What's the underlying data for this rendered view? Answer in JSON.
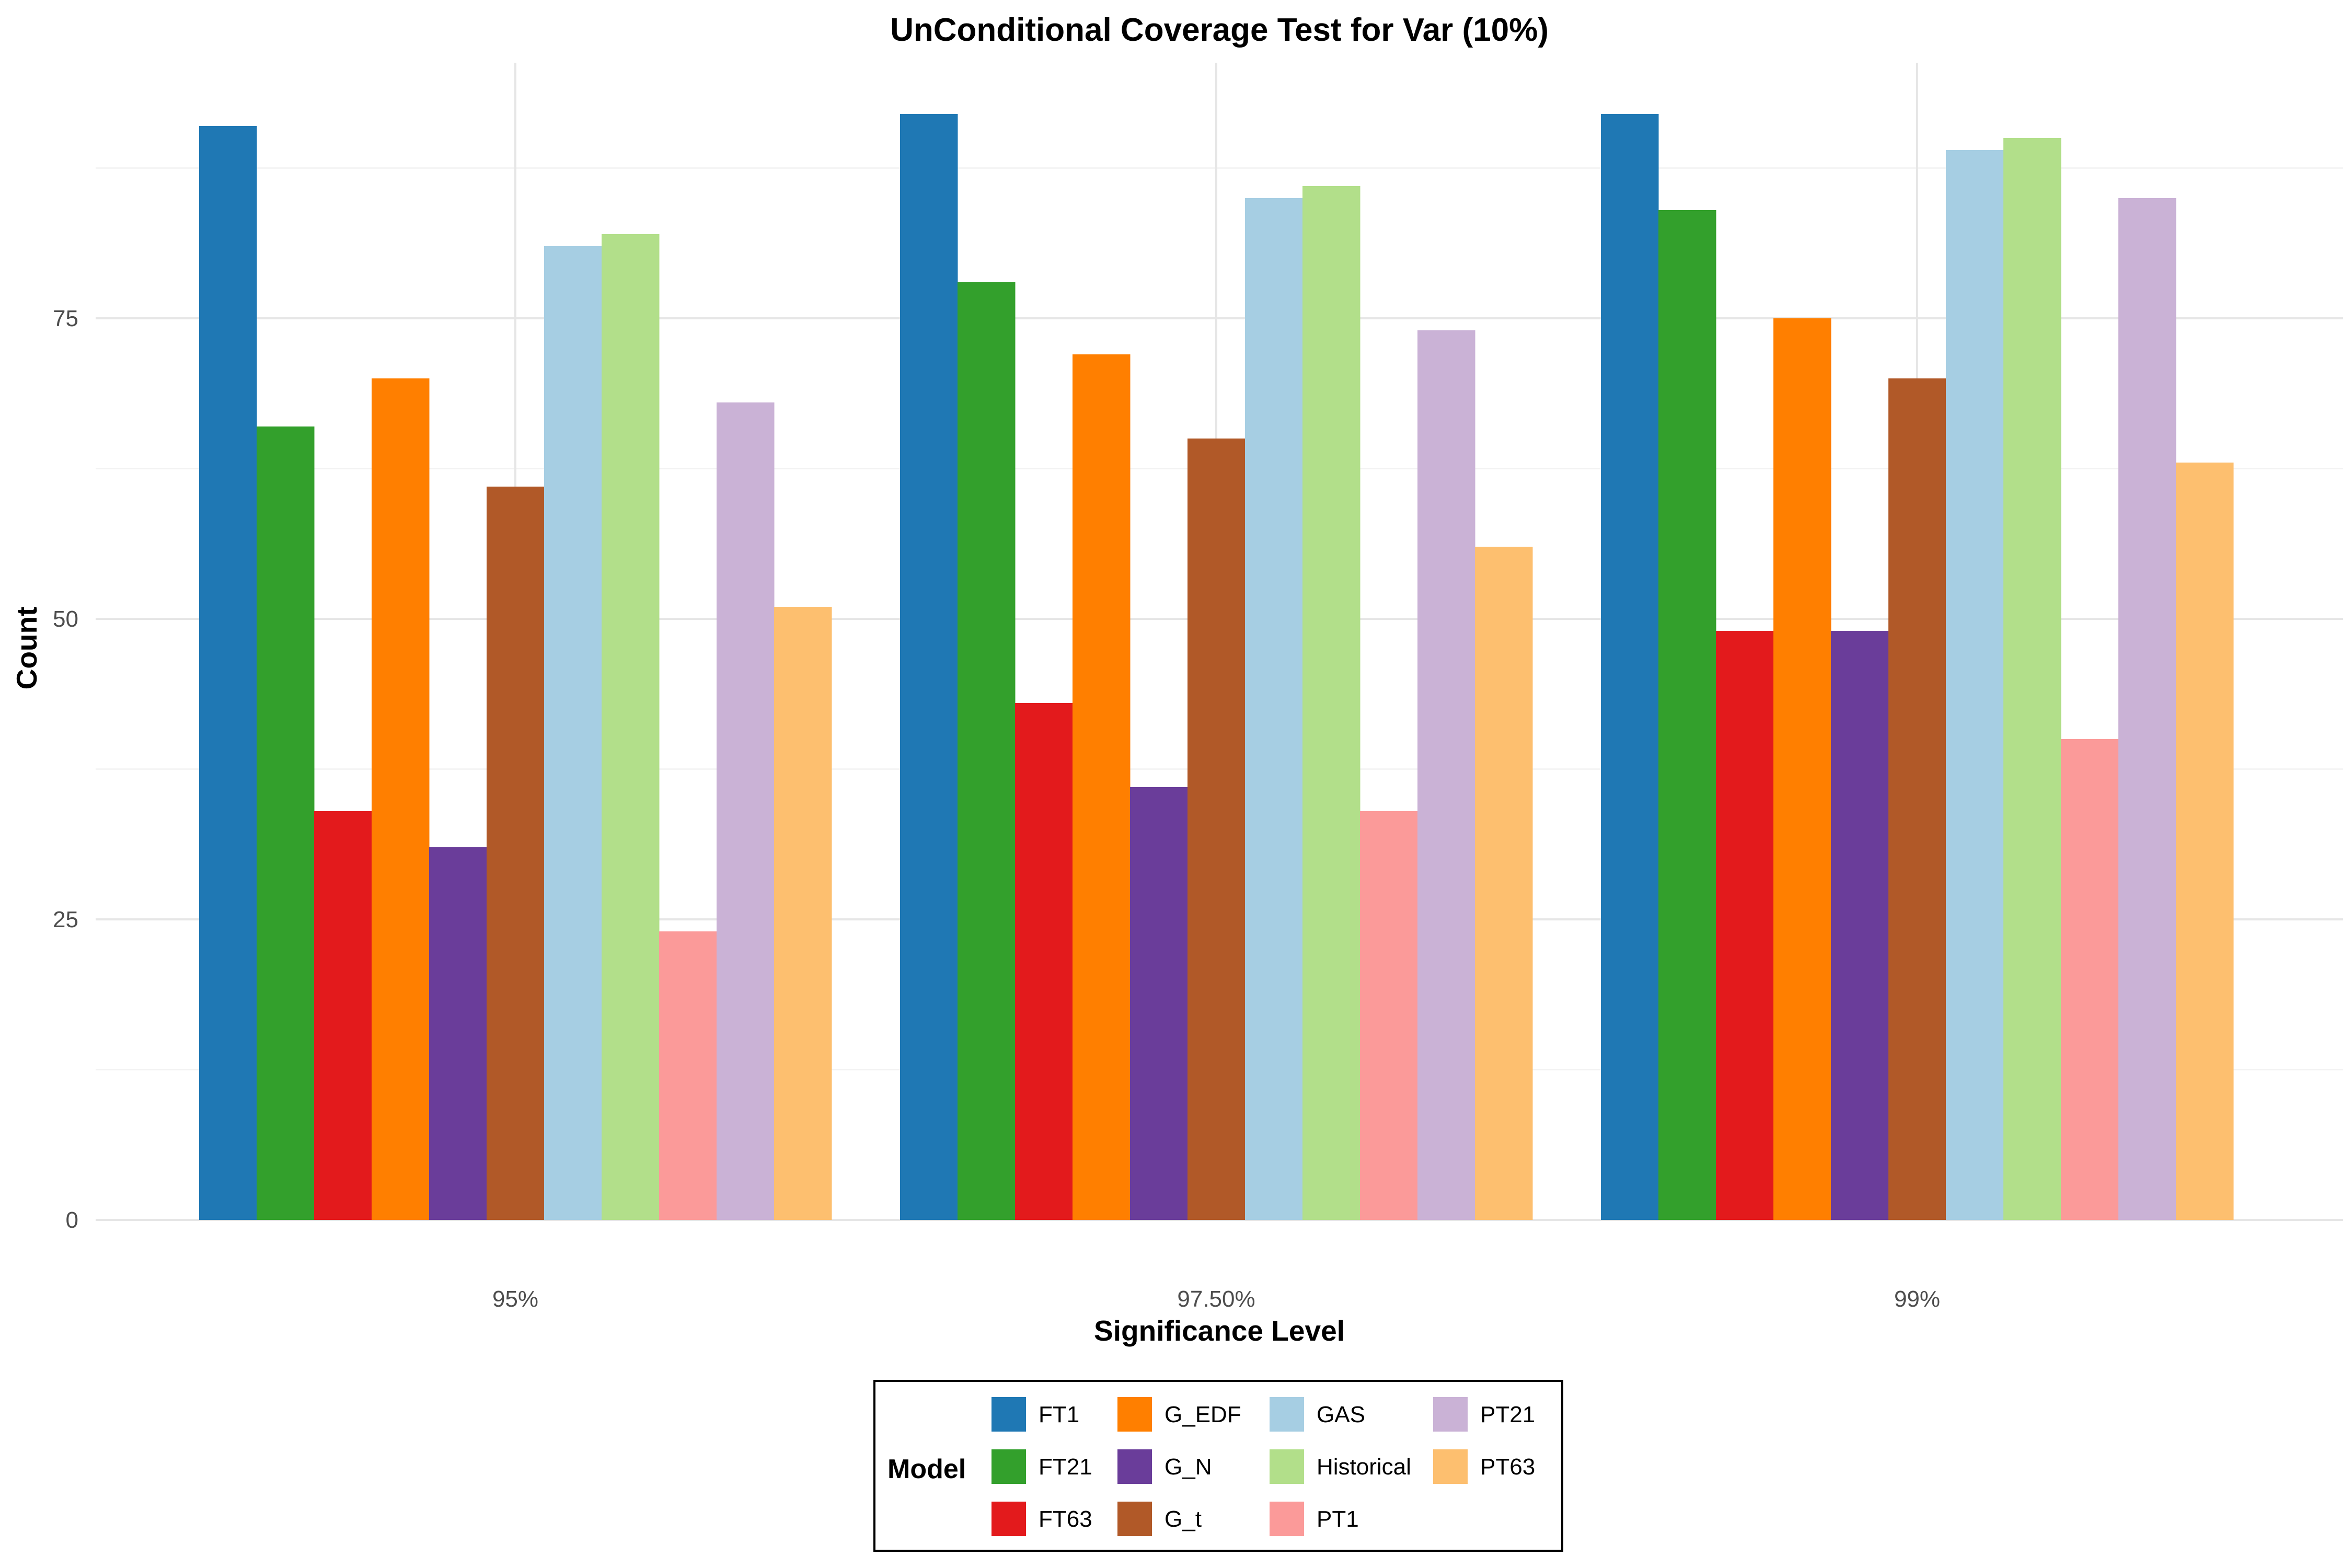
{
  "chart_data": {
    "type": "bar",
    "title": "UnConditional Coverage Test for Var (10%)",
    "xlabel": "Significance Level",
    "ylabel": "Count",
    "ylim": [
      0,
      96
    ],
    "yticks": [
      0,
      25,
      50,
      75
    ],
    "categories": [
      "95%",
      "97.50%",
      "99%"
    ],
    "legend": {
      "title": "Model",
      "position": "bottom",
      "columns": 4
    },
    "series": [
      {
        "name": "FT1",
        "color": "#1f78b4",
        "values": [
          91,
          92,
          92
        ]
      },
      {
        "name": "FT21",
        "color": "#33a02c",
        "values": [
          66,
          78,
          84
        ]
      },
      {
        "name": "FT63",
        "color": "#e31a1c",
        "values": [
          34,
          43,
          49
        ]
      },
      {
        "name": "G_EDF",
        "color": "#ff7f00",
        "values": [
          70,
          72,
          75
        ]
      },
      {
        "name": "G_N",
        "color": "#6a3d9a",
        "values": [
          31,
          36,
          49
        ]
      },
      {
        "name": "G_t",
        "color": "#b15928",
        "values": [
          61,
          65,
          70
        ]
      },
      {
        "name": "GAS",
        "color": "#a6cee3",
        "values": [
          81,
          85,
          89
        ]
      },
      {
        "name": "Historical",
        "color": "#b2df8a",
        "values": [
          82,
          86,
          90
        ]
      },
      {
        "name": "PT1",
        "color": "#fb9a99",
        "values": [
          24,
          34,
          40
        ]
      },
      {
        "name": "PT21",
        "color": "#cab2d6",
        "values": [
          68,
          74,
          85
        ]
      },
      {
        "name": "PT63",
        "color": "#fdbf6f",
        "values": [
          51,
          56,
          63
        ]
      }
    ]
  }
}
